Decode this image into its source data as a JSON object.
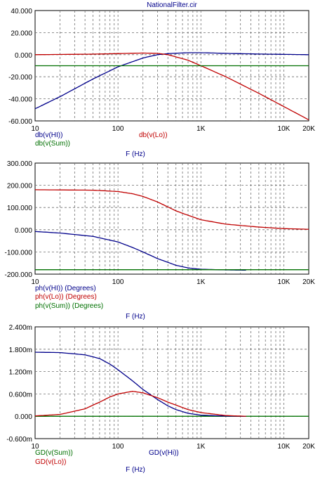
{
  "window_title": "NationalFilter.cir",
  "colors": {
    "blue": "#00008b",
    "red": "#c00000",
    "green": "#007000",
    "grid": "#6e6e6e"
  },
  "chart_data": [
    {
      "type": "line",
      "xscale": "log",
      "xlim": [
        10,
        20000
      ],
      "ylim": [
        -60,
        40
      ],
      "xticks": [
        "10",
        "100",
        "1K",
        "10K",
        "20K"
      ],
      "yticks": [
        "40.000",
        "20.000",
        "0.000",
        "-20.000",
        "-40.000",
        "-60.000"
      ],
      "xlabel": "F (Hz)",
      "series": [
        {
          "name": "db(v(HI))",
          "color": "blue",
          "x": [
            10,
            20,
            50,
            100,
            200,
            300,
            400,
            700,
            1000,
            2000,
            5000,
            10000,
            20000
          ],
          "y": [
            -49,
            -38,
            -22,
            -11,
            -3,
            0,
            1,
            1.8,
            1.8,
            1.2,
            0.6,
            0.3,
            0
          ]
        },
        {
          "name": "db(v(Lo))",
          "color": "red",
          "x": [
            10,
            50,
            100,
            200,
            300,
            400,
            700,
            1000,
            2000,
            5000,
            10000,
            20000
          ],
          "y": [
            0,
            0.5,
            1,
            1.5,
            1.2,
            0,
            -5,
            -10,
            -20,
            -35,
            -47,
            -59
          ]
        },
        {
          "name": "db(v(Sum))",
          "color": "green",
          "x": [
            10,
            20000
          ],
          "y": [
            -10,
            -10
          ]
        }
      ]
    },
    {
      "type": "line",
      "xscale": "log",
      "xlim": [
        10,
        20000
      ],
      "ylim": [
        -200,
        300
      ],
      "xticks": [
        "10",
        "100",
        "1K",
        "10K",
        "20K"
      ],
      "yticks": [
        "300.000",
        "200.000",
        "100.000",
        "0.000",
        "-100.000",
        "-200.000"
      ],
      "xlabel": "F (Hz)",
      "series": [
        {
          "name": "ph(v(HI)) (Degrees)",
          "color": "blue",
          "x": [
            10,
            20,
            50,
            100,
            150,
            200,
            300,
            500,
            700,
            1000,
            2000,
            3500
          ],
          "y": [
            -8,
            -15,
            -30,
            -55,
            -80,
            -100,
            -130,
            -160,
            -172,
            -178,
            -181,
            -182
          ]
        },
        {
          "name": "ph(v(Lo)) (Degrees)",
          "color": "red",
          "x": [
            10,
            50,
            100,
            150,
            200,
            300,
            500,
            700,
            1000,
            2000,
            5000,
            10000,
            20000
          ],
          "y": [
            180,
            178,
            172,
            162,
            150,
            125,
            85,
            65,
            45,
            25,
            12,
            5,
            2
          ]
        },
        {
          "name": "ph(v(Sum)) (Degrees)",
          "color": "green",
          "x": [
            10,
            20000
          ],
          "y": [
            -180,
            -180
          ]
        }
      ]
    },
    {
      "type": "line",
      "xscale": "log",
      "xlim": [
        10,
        20000
      ],
      "ylim": [
        -0.6,
        2.4
      ],
      "xticks": [
        "10",
        "100",
        "1K",
        "10K",
        "20K"
      ],
      "yticks": [
        "2.400m",
        "1.800m",
        "1.200m",
        "0.600m",
        "0.000",
        "-0.600m"
      ],
      "xlabel": "F (Hz)",
      "series": [
        {
          "name": "GD(v(Sum))",
          "color": "green",
          "x": [
            10,
            20000
          ],
          "y": [
            0,
            0
          ]
        },
        {
          "name": "GD(v(Hi))",
          "color": "blue",
          "x": [
            10,
            20,
            40,
            60,
            80,
            100,
            150,
            200,
            300,
            400,
            500,
            700,
            1000,
            2000,
            3500
          ],
          "y": [
            1.72,
            1.71,
            1.65,
            1.55,
            1.4,
            1.25,
            0.95,
            0.72,
            0.45,
            0.28,
            0.18,
            0.08,
            0.03,
            0.005,
            0
          ]
        },
        {
          "name": "GD(v(Lo))",
          "color": "red",
          "x": [
            10,
            20,
            40,
            60,
            80,
            100,
            150,
            200,
            300,
            400,
            500,
            700,
            1000,
            2000,
            3500
          ],
          "y": [
            0.01,
            0.05,
            0.2,
            0.38,
            0.52,
            0.6,
            0.67,
            0.63,
            0.5,
            0.38,
            0.3,
            0.18,
            0.1,
            0.02,
            0
          ]
        }
      ]
    }
  ]
}
